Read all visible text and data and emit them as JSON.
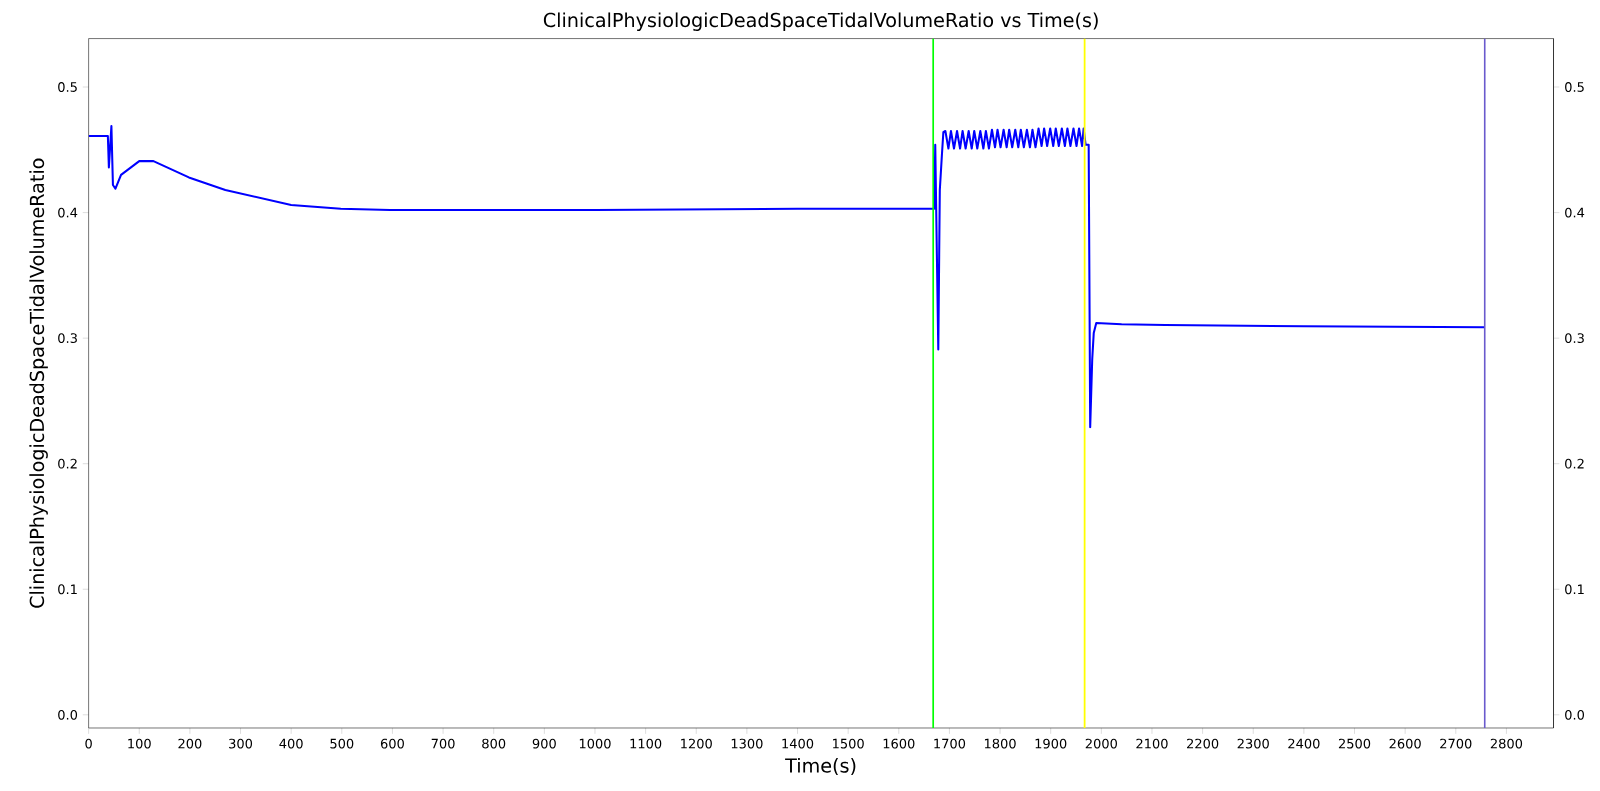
{
  "chart_data": {
    "type": "line",
    "title": "ClinicalPhysiologicDeadSpaceTidalVolumeRatio vs Time(s)",
    "xlabel": "Time(s)",
    "ylabel": "ClinicalPhysiologicDeadSpaceTidalVolumeRatio",
    "xlim": [
      0,
      2893
    ],
    "ylim": [
      -0.0105,
      0.5386
    ],
    "y2lim": [
      -0.0105,
      0.5386
    ],
    "xticks": [
      0,
      100,
      200,
      300,
      400,
      500,
      600,
      700,
      800,
      900,
      1000,
      1100,
      1200,
      1300,
      1400,
      1500,
      1600,
      1700,
      1800,
      1900,
      2000,
      2100,
      2200,
      2300,
      2400,
      2500,
      2600,
      2700,
      2800
    ],
    "yticks": [
      {
        "value": 0,
        "label": "0.0"
      },
      0.1,
      0.2,
      0.3,
      0.4,
      0.5
    ],
    "y2ticks": [
      {
        "value": 0,
        "label": "0.0"
      },
      0.1,
      0.2,
      0.3,
      0.4,
      0.5
    ],
    "line_style": "solid",
    "ref_lines": [
      {
        "axis": "x",
        "value": 1668,
        "color": "#00ff00"
      },
      {
        "axis": "x",
        "value": 1967,
        "color": "#ffff00"
      },
      {
        "axis": "x",
        "value": 2757,
        "color": "#6a5acd"
      }
    ],
    "series": [
      {
        "color": "#0000ff",
        "x": [
          0,
          38,
          40,
          45,
          48,
          53,
          64,
          100,
          128,
          198,
          270,
          400,
          498,
          595,
          1000,
          1400,
          1670,
          1672,
          1678,
          1681,
          1685,
          1688,
          1692,
          1698,
          1703,
          1709,
          1715,
          1721,
          1726,
          1732,
          1738,
          1744,
          1749,
          1755,
          1761,
          1767,
          1772,
          1778,
          1784,
          1790,
          1795,
          1801,
          1807,
          1813,
          1818,
          1824,
          1830,
          1836,
          1841,
          1847,
          1853,
          1859,
          1864,
          1870,
          1876,
          1882,
          1887,
          1893,
          1899,
          1905,
          1910,
          1916,
          1922,
          1928,
          1933,
          1939,
          1945,
          1951,
          1956,
          1962,
          1965,
          1969,
          1975,
          1978,
          1982,
          1985,
          1990,
          2040,
          2126,
          2400,
          2757
        ],
        "values": [
          0.461,
          0.461,
          0.436,
          0.469,
          0.422,
          0.419,
          0.43,
          0.441,
          0.441,
          0.428,
          0.418,
          0.406,
          0.403,
          0.402,
          0.402,
          0.403,
          0.403,
          0.454,
          0.291,
          0.418,
          0.445,
          0.464,
          0.465,
          0.451,
          0.465,
          0.451,
          0.465,
          0.451,
          0.465,
          0.451,
          0.465,
          0.451,
          0.465,
          0.451,
          0.465,
          0.451,
          0.465,
          0.451,
          0.466,
          0.452,
          0.466,
          0.452,
          0.466,
          0.452,
          0.466,
          0.452,
          0.466,
          0.452,
          0.466,
          0.452,
          0.466,
          0.452,
          0.466,
          0.452,
          0.467,
          0.453,
          0.467,
          0.453,
          0.467,
          0.453,
          0.467,
          0.453,
          0.467,
          0.453,
          0.467,
          0.453,
          0.467,
          0.453,
          0.467,
          0.453,
          0.467,
          0.454,
          0.454,
          0.229,
          0.283,
          0.304,
          0.312,
          0.311,
          0.3105,
          0.3095,
          0.3087
        ]
      }
    ]
  }
}
